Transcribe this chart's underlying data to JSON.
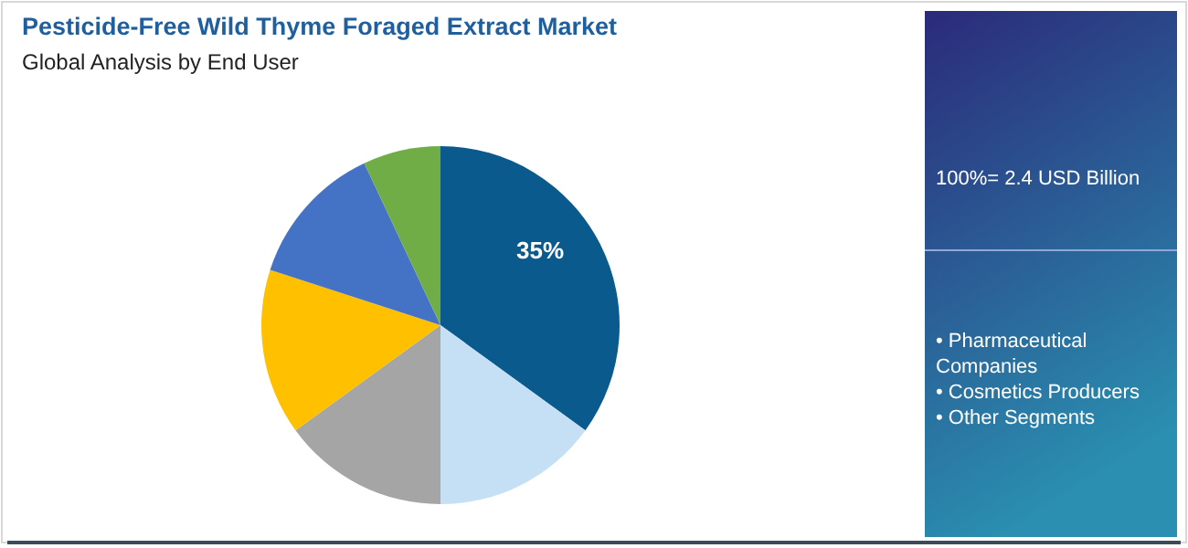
{
  "chart_data": {
    "type": "pie",
    "title": "Pesticide-Free Wild Thyme Foraged Extract Market",
    "subtitle": "Global Analysis by End User",
    "categories": [
      null,
      null,
      null,
      null,
      null,
      null
    ],
    "values": [
      35,
      15,
      15,
      15,
      13,
      7
    ],
    "colors": [
      "#0b5a8e",
      "#c5e0f4",
      "#a5a5a5",
      "#ffc000",
      "#4472c4",
      "#70ad47"
    ],
    "value_labels": [
      "35%",
      null,
      null,
      null,
      null,
      null
    ],
    "annotations": [
      "100%= 2.4 USD Billion",
      "• Pharmaceutical Companies",
      "• Cosmetics Producers",
      "• Other Segments"
    ]
  }
}
